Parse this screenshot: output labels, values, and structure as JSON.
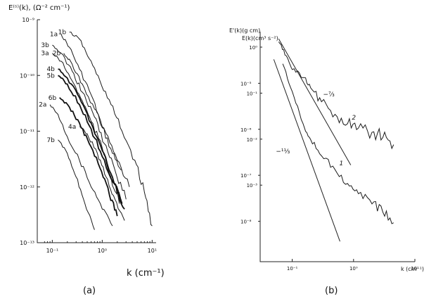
{
  "panels": {
    "a": {
      "caption": "(a)"
    },
    "b": {
      "caption": "(b)"
    }
  },
  "chart_data": [
    {
      "type": "line",
      "panel": "a",
      "scale": "log-log",
      "title": "",
      "ylabel": "E⁽ˢ⁾(k), (Ω⁻² cm⁻¹)",
      "xlabel": "k (cm⁻¹)",
      "xlim": [
        0.05,
        12
      ],
      "ylim": [
        1e-13,
        1e-09
      ],
      "xticks": [
        {
          "v": 0.1,
          "label": "10⁻¹"
        },
        {
          "v": 1,
          "label": "10⁰"
        },
        {
          "v": 10,
          "label": "10¹"
        }
      ],
      "yticks": [
        {
          "v": 1e-09,
          "label": "10⁻⁹"
        },
        {
          "v": 1e-10,
          "label": "10⁻¹⁰"
        },
        {
          "v": 1e-11,
          "label": "10⁻¹¹"
        },
        {
          "v": 1e-12,
          "label": "10⁻¹²"
        },
        {
          "v": 1e-13,
          "label": "10⁻¹³"
        }
      ],
      "series": [
        {
          "name": "1a",
          "weight": "thin",
          "x": [
            0.15,
            0.22,
            0.35,
            0.6,
            1.0,
            1.6,
            2.4
          ],
          "y": [
            5.5e-10,
            3.2e-10,
            1.3e-10,
            4.5e-11,
            1.2e-11,
            4e-12,
            2e-12
          ]
        },
        {
          "name": "1b",
          "weight": "thin",
          "x": [
            0.22,
            0.35,
            0.55,
            0.9,
            1.5,
            2.5,
            4.5,
            7,
            10
          ],
          "y": [
            6e-10,
            4.5e-10,
            2e-10,
            8e-11,
            3e-11,
            1e-11,
            3e-12,
            8e-13,
            2e-13
          ]
        },
        {
          "name": "3b",
          "weight": "thin",
          "x": [
            0.1,
            0.15,
            0.25,
            0.4,
            0.7,
            1.1,
            1.8,
            3
          ],
          "y": [
            3.5e-10,
            2.5e-10,
            1.2e-10,
            5e-11,
            1.8e-11,
            6e-12,
            2e-12,
            6e-13
          ]
        },
        {
          "name": "3a",
          "weight": "thin",
          "x": [
            0.1,
            0.15,
            0.25,
            0.4,
            0.6,
            1.0,
            1.5,
            2.2
          ],
          "y": [
            2.5e-10,
            1.8e-10,
            8e-11,
            3.5e-11,
            1.5e-11,
            5e-12,
            1.5e-12,
            5e-13
          ]
        },
        {
          "name": "2b",
          "weight": "thin",
          "x": [
            0.17,
            0.25,
            0.4,
            0.7,
            1.2,
            2,
            3.5
          ],
          "y": [
            2.5e-10,
            1.6e-10,
            7e-11,
            2.5e-11,
            9e-12,
            3e-12,
            1e-12
          ]
        },
        {
          "name": "4b",
          "weight": "bold",
          "x": [
            0.13,
            0.2,
            0.35,
            0.6,
            1.0,
            1.6,
            2.5
          ],
          "y": [
            1.3e-10,
            9e-11,
            4e-11,
            1.4e-11,
            4.5e-12,
            1.5e-12,
            5e-13
          ]
        },
        {
          "name": "5b",
          "weight": "bold",
          "x": [
            0.13,
            0.2,
            0.35,
            0.6,
            1.0,
            1.8,
            2.8
          ],
          "y": [
            1e-10,
            7e-11,
            3e-11,
            1.1e-11,
            3.5e-12,
            1.1e-12,
            4e-13
          ]
        },
        {
          "name": "6b",
          "weight": "bold",
          "x": [
            0.14,
            0.22,
            0.35,
            0.55,
            0.9,
            1.4,
            2
          ],
          "y": [
            4e-11,
            2.7e-11,
            1.4e-11,
            6e-12,
            2.2e-12,
            7e-13,
            3e-13
          ]
        },
        {
          "name": "2a",
          "weight": "thin",
          "x": [
            0.09,
            0.13,
            0.2,
            0.35,
            0.6,
            1.0,
            1.6
          ],
          "y": [
            3e-11,
            2e-11,
            8e-12,
            3e-12,
            1e-12,
            4e-13,
            2e-13
          ]
        },
        {
          "name": "4a",
          "weight": "thin",
          "x": [
            0.35,
            0.5,
            0.8,
            1.2,
            1.8,
            2.8
          ],
          "y": [
            1.2e-11,
            9e-12,
            4e-12,
            1.5e-12,
            6e-13,
            2.5e-13
          ]
        },
        {
          "name": "7b",
          "weight": "thin",
          "x": [
            0.13,
            0.2,
            0.3,
            0.45,
            0.7
          ],
          "y": [
            7e-12,
            4e-12,
            1.5e-12,
            5e-13,
            1.7e-13
          ]
        }
      ]
    },
    {
      "type": "line",
      "panel": "b",
      "scale": "log-log",
      "title": "",
      "ylabel": "E'(k)(g cm)",
      "ylabel2": "E(k)(cm³ s⁻²)",
      "xlabel": "k (cm⁻¹)",
      "xlim": [
        0.03,
        10
      ],
      "ylim": [
        1e-09,
        0.0001
      ],
      "xticks": [
        {
          "v": 0.1,
          "label": "10⁻¹"
        },
        {
          "v": 1,
          "label": "10⁰"
        },
        {
          "v": 10,
          "label": "10¹"
        }
      ],
      "yticks_outer": [
        {
          "v": 1e-05,
          "label": "10⁻⁵"
        },
        {
          "v": 1e-06,
          "label": "10⁻⁶"
        },
        {
          "v": 1e-07,
          "label": "10⁻⁷"
        },
        {
          "v": 1e-08,
          "label": "10⁻⁸"
        }
      ],
      "yticks_inner": [
        {
          "v": 0.0001,
          "label": "10⁰"
        },
        {
          "v": 1e-05,
          "label": "10⁻¹"
        },
        {
          "v": 1e-06,
          "label": "10⁻²"
        },
        {
          "v": 1e-07,
          "label": "10⁻³"
        }
      ],
      "series": [
        {
          "name": "2",
          "x": [
            0.06,
            0.08,
            0.1,
            0.15,
            0.2,
            0.3,
            0.5,
            0.8,
            1.2,
            2,
            3,
            4.5
          ],
          "y": [
            6e-05,
            3e-05,
            1.5e-05,
            1e-05,
            6e-06,
            3e-06,
            1.6e-06,
            1e-06,
            8e-07,
            6.5e-07,
            5e-07,
            3.5e-07
          ]
        },
        {
          "name": "1",
          "x": [
            0.07,
            0.1,
            0.15,
            0.2,
            0.3,
            0.5,
            0.8,
            1.2,
            2,
            3,
            4.5
          ],
          "y": [
            2e-05,
            5e-06,
            1e-06,
            4.5e-07,
            2e-07,
            1e-07,
            5e-08,
            3e-08,
            1.8e-08,
            1.2e-08,
            7e-09
          ]
        }
      ],
      "reference_lines": [
        {
          "label": "−⁷⁄₃",
          "slope": -2.333,
          "x": [
            0.06,
            0.9
          ],
          "y0": 7e-05
        },
        {
          "label": "−¹¹⁄₃",
          "slope": -3.667,
          "x": [
            0.05,
            0.6
          ],
          "y0": 2.5e-05
        }
      ]
    }
  ]
}
